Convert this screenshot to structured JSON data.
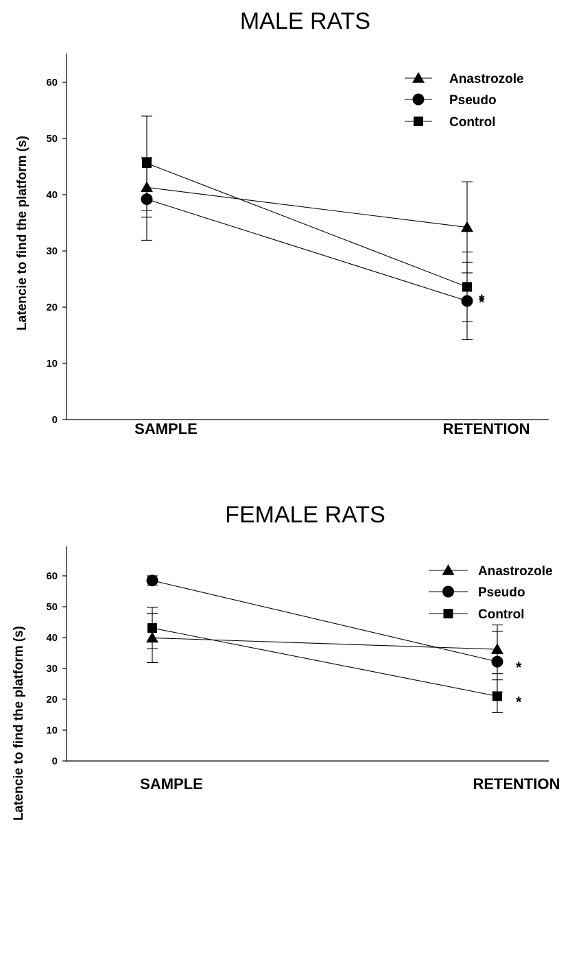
{
  "chart_data": [
    {
      "type": "line",
      "title": "MALE RATS",
      "ylabel": "Latencie to find the platform (s)",
      "xlabel": "",
      "categories": [
        "SAMPLE",
        "RETENTION"
      ],
      "ylim": [
        0,
        65
      ],
      "yticks": [
        0,
        10,
        20,
        30,
        40,
        50,
        60
      ],
      "legend": "top-right",
      "series": [
        {
          "name": "Anastrozole",
          "marker": "triangle",
          "values": [
            41.3,
            34.2
          ],
          "errors": [
            5.3,
            8.1
          ],
          "significance": [
            "",
            ""
          ]
        },
        {
          "name": "Pseudo",
          "marker": "circle",
          "values": [
            39.2,
            21.1
          ],
          "errors": [
            7.3,
            6.9
          ],
          "significance": [
            "",
            "*"
          ]
        },
        {
          "name": "Control",
          "marker": "square",
          "values": [
            45.6,
            23.6
          ],
          "errors": [
            8.4,
            6.2
          ],
          "significance": [
            "",
            "*"
          ]
        }
      ]
    },
    {
      "type": "line",
      "title": "FEMALE RATS",
      "ylabel": "Latencie to find the platform (s)",
      "xlabel": "",
      "categories": [
        "SAMPLE",
        "RETENTION"
      ],
      "ylim": [
        0,
        65
      ],
      "yticks": [
        0,
        10,
        20,
        30,
        40,
        50,
        60
      ],
      "legend": "top-right",
      "series": [
        {
          "name": "Anastrozole",
          "marker": "triangle",
          "values": [
            39.9,
            36.2
          ],
          "errors": [
            8.0,
            7.9
          ],
          "significance": [
            "",
            ""
          ]
        },
        {
          "name": "Pseudo",
          "marker": "circle",
          "values": [
            58.5,
            32.2
          ],
          "errors": [
            1.5,
            9.8
          ],
          "significance": [
            "",
            "*"
          ]
        },
        {
          "name": "Control",
          "marker": "square",
          "values": [
            43.1,
            21.0
          ],
          "errors": [
            6.7,
            5.3
          ],
          "significance": [
            "",
            "*"
          ]
        }
      ]
    }
  ]
}
